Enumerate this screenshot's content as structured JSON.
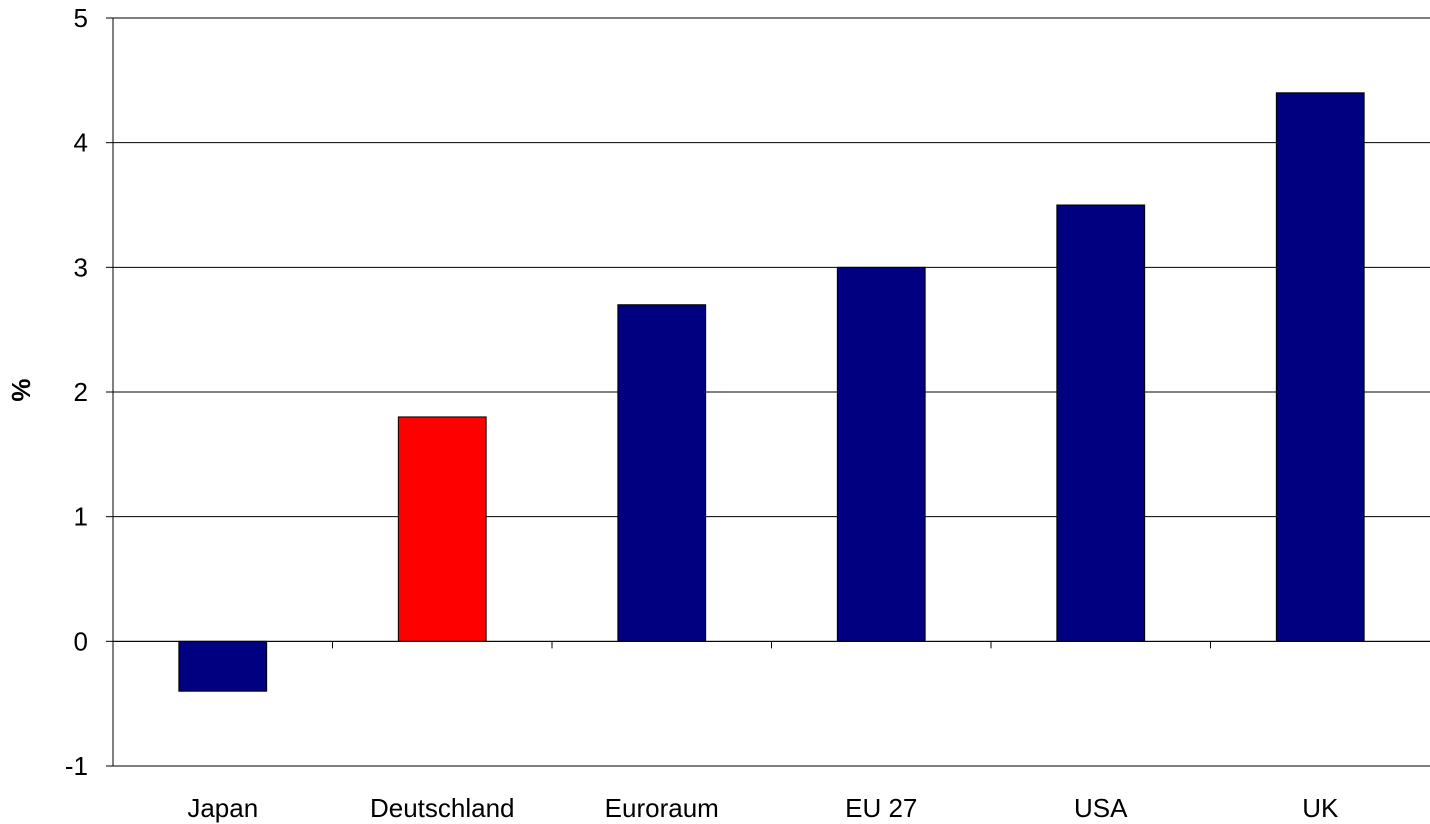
{
  "chart_data": {
    "type": "bar",
    "categories": [
      "Japan",
      "Deutschland",
      "Euroraum",
      "EU 27",
      "USA",
      "UK"
    ],
    "values": [
      -0.4,
      1.8,
      2.7,
      3.0,
      3.5,
      4.4
    ],
    "bar_colors": [
      "#000080",
      "#ff0000",
      "#000080",
      "#000080",
      "#000080",
      "#000080"
    ],
    "title": "",
    "xlabel": "",
    "ylabel": "%",
    "ylim": [
      -1,
      5
    ],
    "yticks": [
      "-1",
      "0",
      "1",
      "2",
      "3",
      "4",
      "5"
    ],
    "grid": true,
    "legend": "none"
  }
}
